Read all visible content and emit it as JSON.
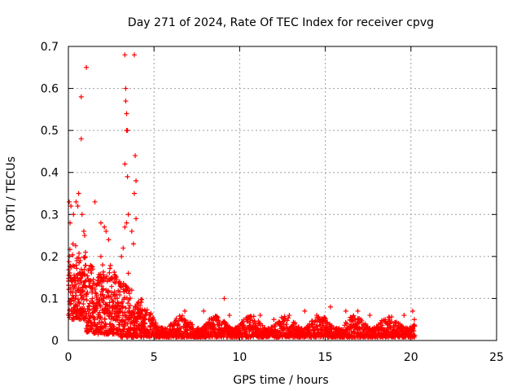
{
  "chart_data": {
    "type": "scatter",
    "title": "Day 271 of 2024, Rate Of TEC Index for receiver cpvg",
    "xlabel": "GPS time / hours",
    "ylabel": "ROTI / TECUs",
    "xlim": [
      0,
      25
    ],
    "ylim": [
      0,
      0.7
    ],
    "grid": true,
    "xticks": [
      "0",
      "5",
      "10",
      "15",
      "20",
      "25"
    ],
    "yticks": [
      "0",
      "0.1",
      "0.2",
      "0.3",
      "0.4",
      "0.5",
      "0.6",
      "0.7"
    ],
    "marker": "+",
    "series": [
      {
        "name": "cpvg",
        "color": "#ff0000",
        "points": [
          [
            0.05,
            0.33
          ],
          [
            0.1,
            0.28
          ],
          [
            0.15,
            0.32
          ],
          [
            0.3,
            0.3
          ],
          [
            0.45,
            0.33
          ],
          [
            0.55,
            0.32
          ],
          [
            0.6,
            0.35
          ],
          [
            0.75,
            0.58
          ],
          [
            0.75,
            0.48
          ],
          [
            1.05,
            0.65
          ],
          [
            0.8,
            0.3
          ],
          [
            0.9,
            0.26
          ],
          [
            0.95,
            0.25
          ],
          [
            1.55,
            0.33
          ],
          [
            1.9,
            0.28
          ],
          [
            2.1,
            0.27
          ],
          [
            2.2,
            0.26
          ],
          [
            2.35,
            0.24
          ],
          [
            3.3,
            0.68
          ],
          [
            3.35,
            0.6
          ],
          [
            3.35,
            0.57
          ],
          [
            3.4,
            0.54
          ],
          [
            3.4,
            0.5
          ],
          [
            3.45,
            0.5
          ],
          [
            3.3,
            0.42
          ],
          [
            3.45,
            0.39
          ],
          [
            3.5,
            0.3
          ],
          [
            3.4,
            0.28
          ],
          [
            3.3,
            0.27
          ],
          [
            3.85,
            0.68
          ],
          [
            3.9,
            0.44
          ],
          [
            3.85,
            0.35
          ],
          [
            3.95,
            0.38
          ],
          [
            3.95,
            0.29
          ],
          [
            3.7,
            0.26
          ],
          [
            3.8,
            0.23
          ],
          [
            0.2,
            0.14
          ],
          [
            0.4,
            0.1
          ],
          [
            0.5,
            0.19
          ],
          [
            0.65,
            0.16
          ],
          [
            0.85,
            0.12
          ],
          [
            1.0,
            0.21
          ],
          [
            1.2,
            0.13
          ],
          [
            1.4,
            0.1
          ],
          [
            1.6,
            0.08
          ],
          [
            1.75,
            0.15
          ],
          [
            1.9,
            0.2
          ],
          [
            2.0,
            0.18
          ],
          [
            2.2,
            0.12
          ],
          [
            2.4,
            0.09
          ],
          [
            2.6,
            0.07
          ],
          [
            2.8,
            0.11
          ],
          [
            3.0,
            0.14
          ],
          [
            3.1,
            0.2
          ],
          [
            3.2,
            0.22
          ],
          [
            3.5,
            0.16
          ],
          [
            3.7,
            0.12
          ],
          [
            3.9,
            0.08
          ],
          [
            4.1,
            0.09
          ],
          [
            4.3,
            0.07
          ],
          [
            4.5,
            0.06
          ],
          [
            4.8,
            0.05
          ],
          [
            6.8,
            0.07
          ],
          [
            7.9,
            0.07
          ],
          [
            9.1,
            0.1
          ],
          [
            9.4,
            0.06
          ],
          [
            11.2,
            0.06
          ],
          [
            12.0,
            0.05
          ],
          [
            12.9,
            0.06
          ],
          [
            13.8,
            0.07
          ],
          [
            14.5,
            0.06
          ],
          [
            15.3,
            0.08
          ],
          [
            16.2,
            0.07
          ],
          [
            16.9,
            0.07
          ],
          [
            17.6,
            0.06
          ],
          [
            18.5,
            0.05
          ],
          [
            19.6,
            0.06
          ],
          [
            20.1,
            0.07
          ],
          [
            20.2,
            0.05
          ]
        ]
      }
    ]
  }
}
